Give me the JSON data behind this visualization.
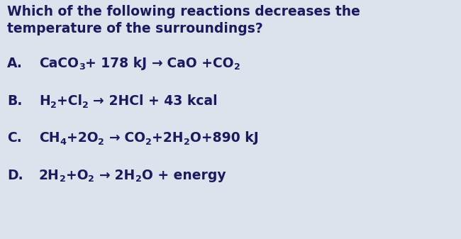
{
  "background_color": "#dde3ec",
  "text_color": "#1a1a5e",
  "title_line1": "Which of the following reactions decreases the",
  "title_line2": "temperature of the surroundings?",
  "title_fontsize": 13.5,
  "answer_fontsize": 13.5,
  "sub_scale": 0.68,
  "sub_drop": 3.5,
  "options": [
    {
      "label": "A.",
      "parts": [
        {
          "text": "CaCO",
          "style": "normal"
        },
        {
          "text": "3",
          "style": "sub"
        },
        {
          "text": "+ 178 kJ ",
          "style": "normal"
        },
        {
          "text": "→",
          "style": "arrow"
        },
        {
          "text": " CaO +CO",
          "style": "normal"
        },
        {
          "text": "2",
          "style": "sub"
        }
      ]
    },
    {
      "label": "B.",
      "parts": [
        {
          "text": "H",
          "style": "normal"
        },
        {
          "text": "2",
          "style": "sub"
        },
        {
          "text": "+Cl",
          "style": "normal"
        },
        {
          "text": "2",
          "style": "sub"
        },
        {
          "text": " ",
          "style": "arrow"
        },
        {
          "text": "→",
          "style": "arrow"
        },
        {
          "text": " 2HCl + 43 kcal",
          "style": "normal"
        }
      ]
    },
    {
      "label": "C.",
      "parts": [
        {
          "text": "CH",
          "style": "normal"
        },
        {
          "text": "4",
          "style": "sub"
        },
        {
          "text": "+2O",
          "style": "normal"
        },
        {
          "text": "2",
          "style": "sub"
        },
        {
          "text": " ",
          "style": "arrow"
        },
        {
          "text": "→",
          "style": "arrow"
        },
        {
          "text": " CO",
          "style": "normal"
        },
        {
          "text": "2",
          "style": "sub"
        },
        {
          "text": "+2H",
          "style": "normal"
        },
        {
          "text": "2",
          "style": "sub"
        },
        {
          "text": "O+890 kJ",
          "style": "normal"
        }
      ]
    },
    {
      "label": "D.",
      "parts": [
        {
          "text": "2H",
          "style": "normal"
        },
        {
          "text": "2",
          "style": "sub"
        },
        {
          "text": "+O",
          "style": "normal"
        },
        {
          "text": "2",
          "style": "sub"
        },
        {
          "text": " ",
          "style": "arrow"
        },
        {
          "text": "→",
          "style": "arrow"
        },
        {
          "text": " 2H",
          "style": "normal"
        },
        {
          "text": "2",
          "style": "sub"
        },
        {
          "text": "O + energy",
          "style": "normal"
        }
      ]
    }
  ]
}
